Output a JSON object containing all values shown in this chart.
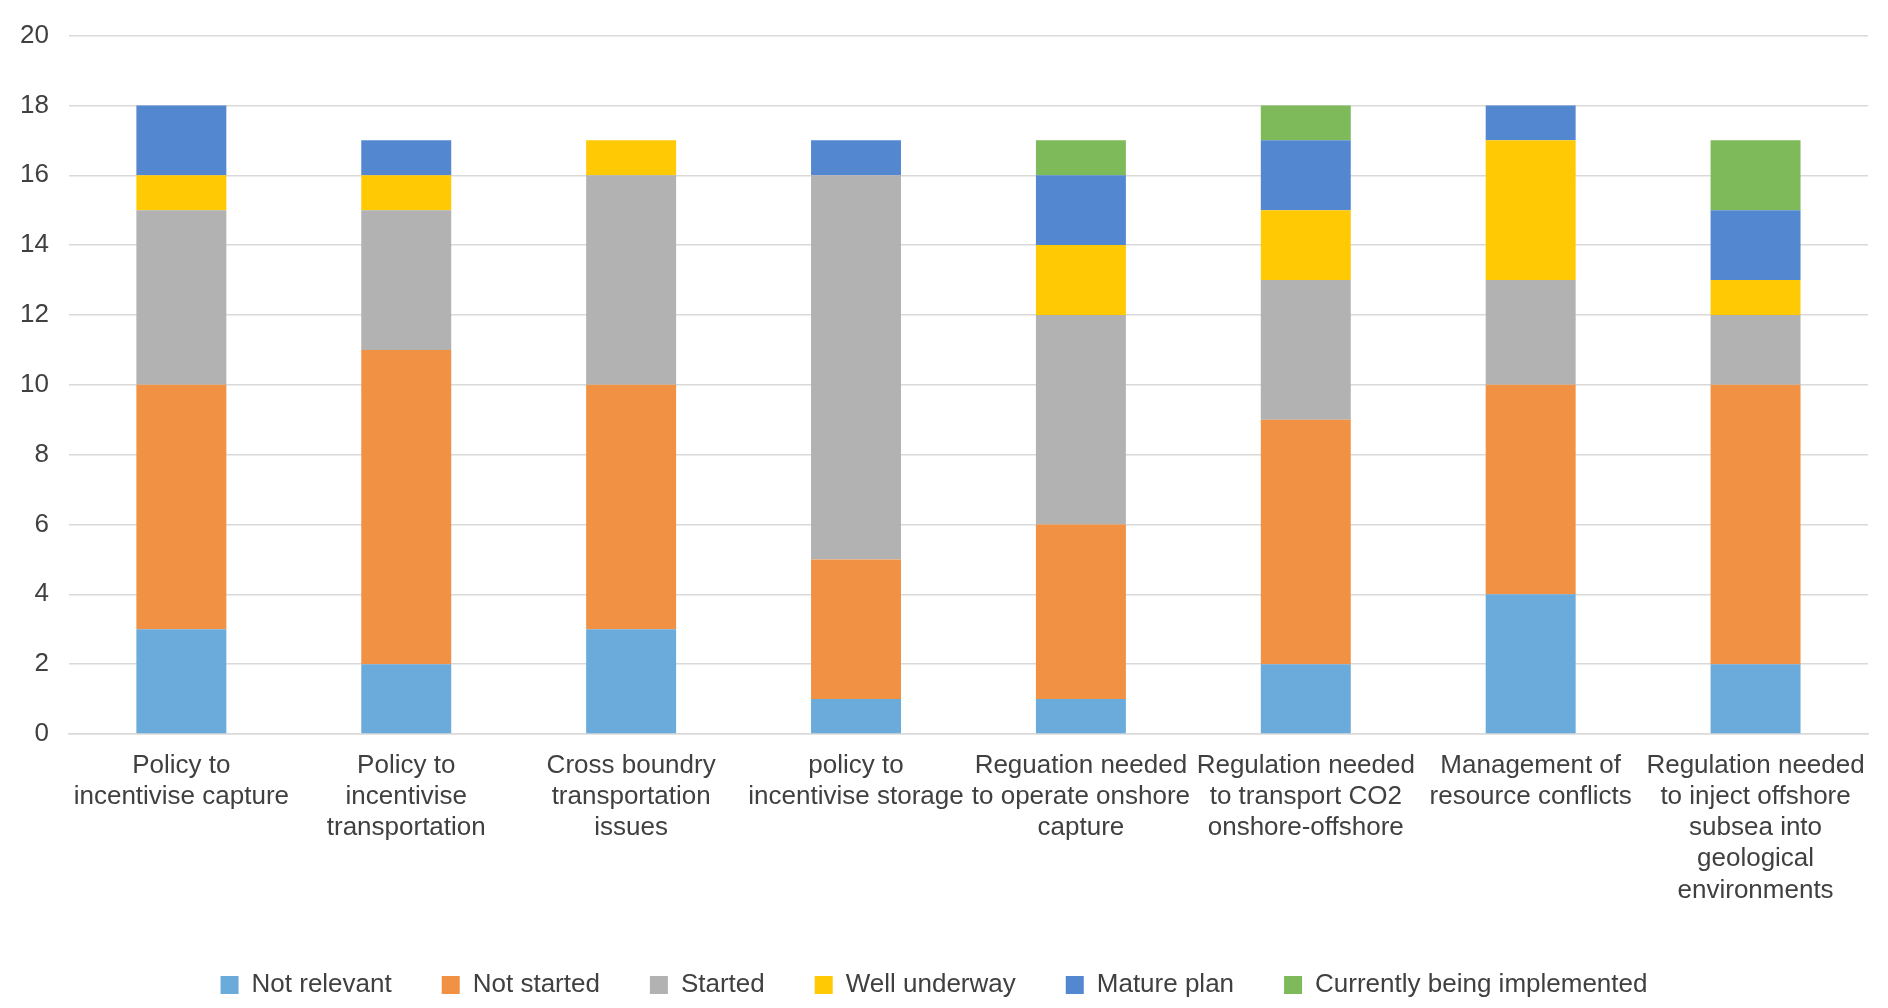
{
  "chart_data": {
    "type": "bar",
    "stacked": true,
    "categories": [
      "Policy to incentivise capture",
      "Policy to incentivise transportation",
      "Cross boundry transportation issues",
      "policy to incentivise storage",
      "Reguation needed to operate onshore capture",
      "Regulation needed to transport CO2 onshore-offshore",
      "Management of resource conflicts",
      "Regulation needed to inject offshore subsea into geological environments"
    ],
    "series": [
      {
        "name": "Not relevant",
        "color": "#6aabdb",
        "values": [
          3,
          2,
          3,
          1,
          1,
          2,
          4,
          2
        ]
      },
      {
        "name": "Not started",
        "color": "#f19143",
        "values": [
          7,
          9,
          7,
          4,
          5,
          7,
          6,
          8
        ]
      },
      {
        "name": "Started",
        "color": "#b2b2b2",
        "values": [
          5,
          4,
          6,
          11,
          6,
          4,
          3,
          2
        ]
      },
      {
        "name": "Well underway",
        "color": "#ffc904",
        "values": [
          1,
          1,
          1,
          0,
          2,
          2,
          4,
          1
        ]
      },
      {
        "name": "Mature plan",
        "color": "#5388d0",
        "values": [
          2,
          1,
          0,
          1,
          2,
          2,
          1,
          2
        ]
      },
      {
        "name": "Currently being implemented",
        "color": "#7fba5a",
        "values": [
          0,
          0,
          0,
          0,
          1,
          1,
          0,
          2
        ]
      }
    ],
    "ylim": [
      0,
      20
    ],
    "yticks": [
      0,
      2,
      4,
      6,
      8,
      10,
      12,
      14,
      16,
      18,
      20
    ],
    "grid": "y",
    "legend": "bottom"
  }
}
